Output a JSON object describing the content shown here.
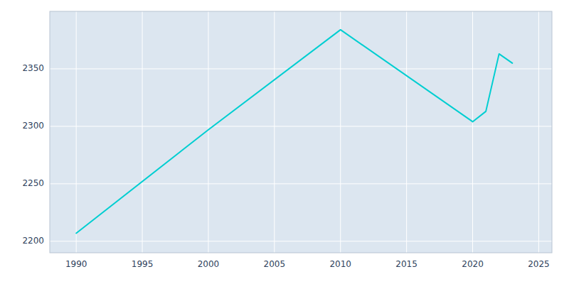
{
  "chart_data": {
    "type": "line",
    "x": [
      1990,
      2000,
      2010,
      2020,
      2021,
      2022,
      2023
    ],
    "values": [
      2207,
      2297,
      2384,
      2304,
      2313,
      2363,
      2355
    ],
    "color": "#00CED1",
    "xlim": [
      1988,
      2026
    ],
    "ylim": [
      2190,
      2400
    ],
    "xticks": [
      1990,
      1995,
      2000,
      2005,
      2010,
      2015,
      2020,
      2025
    ],
    "yticks": [
      2200,
      2250,
      2300,
      2350
    ],
    "grid": true
  }
}
